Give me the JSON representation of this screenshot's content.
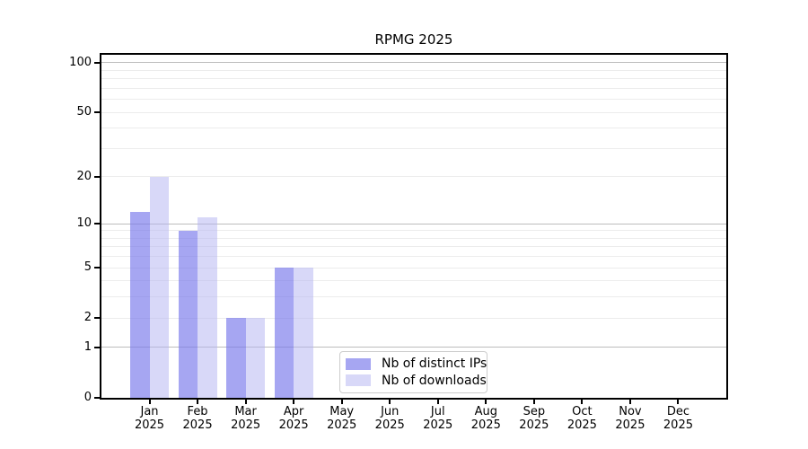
{
  "chart_title": "RPMG 2025",
  "chart_data": {
    "type": "bar",
    "title": "RPMG 2025",
    "year": "2025",
    "categories": [
      "Jan 2025",
      "Feb 2025",
      "Mar 2025",
      "Apr 2025",
      "May 2025",
      "Jun 2025",
      "Jul 2025",
      "Aug 2025",
      "Sep 2025",
      "Oct 2025",
      "Nov 2025",
      "Dec 2025"
    ],
    "months": [
      "Jan",
      "Feb",
      "Mar",
      "Apr",
      "May",
      "Jun",
      "Jul",
      "Aug",
      "Sep",
      "Oct",
      "Nov",
      "Dec"
    ],
    "series": [
      {
        "name": "Nb of distinct IPs",
        "color": "rgba(118,118,235,0.65)",
        "values": [
          12,
          9,
          2,
          5,
          0,
          0,
          0,
          0,
          0,
          0,
          0,
          0
        ]
      },
      {
        "name": "Nb of downloads",
        "color": "rgba(177,177,241,0.5)",
        "values": [
          20,
          11,
          2,
          5,
          0,
          0,
          0,
          0,
          0,
          0,
          0,
          0
        ]
      }
    ],
    "yscale": "log(1+x)",
    "ylim": [
      0,
      112
    ],
    "ytick_values": [
      0,
      1,
      2,
      5,
      10,
      20,
      50,
      100
    ],
    "ytick_labels": [
      "0",
      "1",
      "2",
      "5",
      "10",
      "20",
      "50",
      "100"
    ],
    "major_grid_values": [
      1,
      10,
      100
    ],
    "minor_grid_values": [
      2,
      3,
      4,
      5,
      6,
      7,
      8,
      9,
      20,
      30,
      40,
      50,
      60,
      70,
      80,
      90
    ],
    "grid": "on",
    "legend_position": "inside-bottom-center"
  },
  "legend": {
    "items": [
      {
        "label": "Nb of distinct IPs",
        "swatch_color": "#a6a6f2"
      },
      {
        "label": "Nb of downloads",
        "swatch_color": "#d8d8f8"
      }
    ]
  },
  "colors": {
    "ips_bar": "rgba(118,118,235,0.65)",
    "downloads_bar": "rgba(177,177,241,0.5)",
    "major_gridline": "#bdbdbd",
    "minor_gridline": "#ececec",
    "axis": "#000000",
    "background": "#ffffff"
  }
}
